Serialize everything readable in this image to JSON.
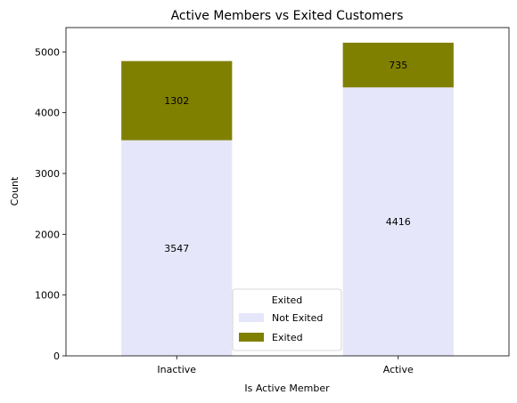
{
  "chart_data": {
    "type": "bar",
    "stacked": true,
    "title": "Active Members vs Exited Customers",
    "xlabel": "Is Active Member",
    "ylabel": "Count",
    "categories": [
      "Inactive",
      "Active"
    ],
    "series": [
      {
        "name": "Not Exited",
        "values": [
          3547,
          4416
        ],
        "color": "#e6e6fa"
      },
      {
        "name": "Exited",
        "values": [
          1302,
          735
        ],
        "color": "#808000"
      }
    ],
    "ylim": [
      0,
      5400
    ],
    "yticks": [
      0,
      1000,
      2000,
      3000,
      4000,
      5000
    ],
    "grid": false,
    "legend": {
      "title": "Exited",
      "placement": "bottom-center"
    },
    "data_labels": true
  }
}
